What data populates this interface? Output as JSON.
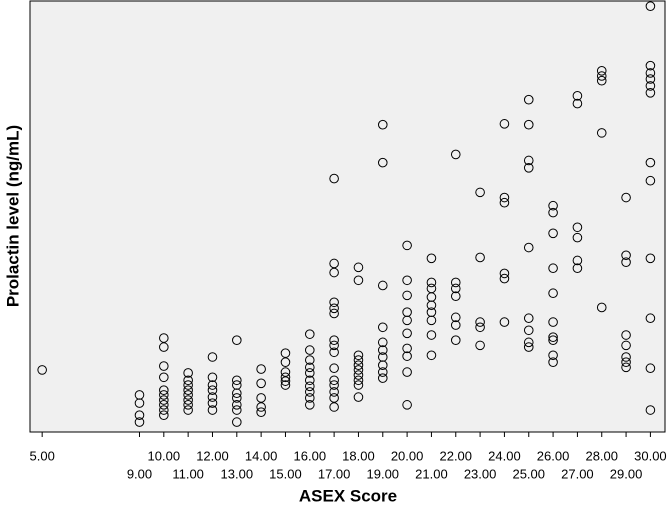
{
  "chart_data": {
    "type": "scatter",
    "x_label": "ASEX Score",
    "y_label": "Prolactin level (ng/mL)",
    "xlim": [
      4.5,
      30.6
    ],
    "ylim": [
      0,
      100
    ],
    "xticks": [
      {
        "value": 5,
        "label": "5.00"
      },
      {
        "value": 9,
        "label": "9.00"
      },
      {
        "value": 10,
        "label": "10.00"
      },
      {
        "value": 11,
        "label": "11.00"
      },
      {
        "value": 12,
        "label": "12.00"
      },
      {
        "value": 13,
        "label": "13.00"
      },
      {
        "value": 14,
        "label": "14.00"
      },
      {
        "value": 15,
        "label": "15.00"
      },
      {
        "value": 16,
        "label": "16.00"
      },
      {
        "value": 17,
        "label": "17.00"
      },
      {
        "value": 18,
        "label": "18.00"
      },
      {
        "value": 19,
        "label": "19.00"
      },
      {
        "value": 20,
        "label": "20.00"
      },
      {
        "value": 21,
        "label": "21.00"
      },
      {
        "value": 22,
        "label": "22.00"
      },
      {
        "value": 23,
        "label": "23.00"
      },
      {
        "value": 24,
        "label": "24.00"
      },
      {
        "value": 25,
        "label": "25.00"
      },
      {
        "value": 26,
        "label": "26.00"
      },
      {
        "value": 27,
        "label": "27.00"
      },
      {
        "value": 28,
        "label": "28.00"
      },
      {
        "value": 29,
        "label": "29.00"
      },
      {
        "value": 30,
        "label": "30.00"
      }
    ],
    "color": "#000000",
    "x": [
      5,
      9,
      9,
      9,
      9,
      10,
      10,
      10,
      10,
      10,
      10,
      10,
      10,
      10,
      10,
      11,
      11,
      11,
      11,
      11,
      11,
      11,
      11,
      12,
      12,
      12,
      12,
      12,
      12,
      12,
      13,
      13,
      13,
      13,
      13,
      13,
      13,
      13,
      14,
      14,
      14,
      14,
      14,
      15,
      15,
      15,
      15,
      15,
      15,
      16,
      16,
      16,
      16,
      16,
      16,
      16,
      16,
      16,
      16,
      17,
      17,
      17,
      17,
      17,
      17,
      17,
      17,
      17,
      17,
      17,
      17,
      17,
      17,
      17,
      18,
      18,
      18,
      18,
      18,
      18,
      18,
      18,
      18,
      18,
      19,
      19,
      19,
      19,
      19,
      19,
      19,
      19,
      19,
      19,
      20,
      20,
      20,
      20,
      20,
      20,
      20,
      20,
      20,
      20,
      21,
      21,
      21,
      21,
      21,
      21,
      21,
      21,
      21,
      22,
      22,
      22,
      22,
      22,
      22,
      22,
      23,
      23,
      23,
      23,
      23,
      24,
      24,
      24,
      24,
      24,
      24,
      25,
      25,
      25,
      25,
      25,
      25,
      25,
      25,
      25,
      26,
      26,
      26,
      26,
      26,
      26,
      26,
      26,
      26,
      26,
      27,
      27,
      27,
      27,
      27,
      27,
      28,
      28,
      28,
      28,
      28,
      29,
      29,
      29,
      29,
      29,
      29,
      29,
      29,
      30,
      30,
      30,
      30,
      30,
      30,
      30,
      30,
      30,
      30,
      30,
      30
    ],
    "values": [
      14.4,
      8.6,
      6.7,
      3.9,
      2.3,
      21.8,
      19.7,
      15.3,
      12.7,
      9.7,
      8.6,
      7.4,
      6.3,
      5.1,
      3.9,
      13.7,
      12.0,
      10.9,
      9.7,
      8.6,
      7.4,
      6.3,
      5.1,
      17.4,
      12.7,
      10.9,
      9.7,
      8.1,
      6.7,
      5.1,
      21.3,
      12.0,
      10.9,
      9.0,
      7.9,
      6.3,
      5.1,
      2.3,
      14.6,
      11.3,
      7.9,
      5.8,
      4.6,
      18.3,
      16.2,
      13.9,
      12.7,
      11.8,
      10.9,
      22.7,
      19.0,
      16.7,
      15.0,
      13.7,
      12.0,
      10.6,
      9.3,
      7.9,
      6.3,
      58.8,
      39.1,
      37.0,
      30.1,
      28.7,
      27.5,
      21.3,
      20.1,
      18.5,
      14.8,
      12.0,
      10.9,
      9.3,
      7.9,
      5.8,
      38.2,
      35.2,
      17.8,
      16.7,
      15.5,
      14.4,
      13.2,
      12.0,
      10.9,
      8.1,
      71.3,
      62.5,
      34.0,
      24.3,
      20.8,
      19.0,
      17.4,
      15.5,
      13.9,
      12.5,
      43.3,
      35.2,
      31.7,
      27.8,
      25.9,
      22.9,
      19.4,
      17.6,
      13.9,
      6.3,
      40.3,
      34.7,
      33.3,
      31.3,
      29.4,
      27.8,
      25.9,
      22.5,
      17.8,
      64.4,
      34.7,
      33.3,
      31.5,
      26.6,
      24.8,
      21.3,
      55.6,
      40.5,
      25.5,
      24.3,
      20.1,
      71.5,
      54.4,
      53.2,
      36.8,
      35.6,
      25.5,
      77.1,
      71.3,
      63.0,
      61.3,
      42.8,
      26.4,
      23.6,
      20.8,
      19.7,
      52.5,
      50.9,
      46.1,
      38.0,
      32.2,
      25.5,
      22.0,
      21.3,
      17.8,
      16.2,
      78.0,
      76.2,
      47.5,
      45.1,
      39.8,
      38.0,
      83.8,
      82.6,
      81.5,
      69.4,
      28.9,
      54.4,
      41.0,
      39.4,
      22.5,
      20.1,
      17.4,
      16.2,
      15.0,
      98.8,
      85.0,
      83.3,
      81.9,
      80.3,
      78.7,
      62.5,
      58.3,
      40.3,
      26.4,
      14.8,
      5.1
    ]
  }
}
